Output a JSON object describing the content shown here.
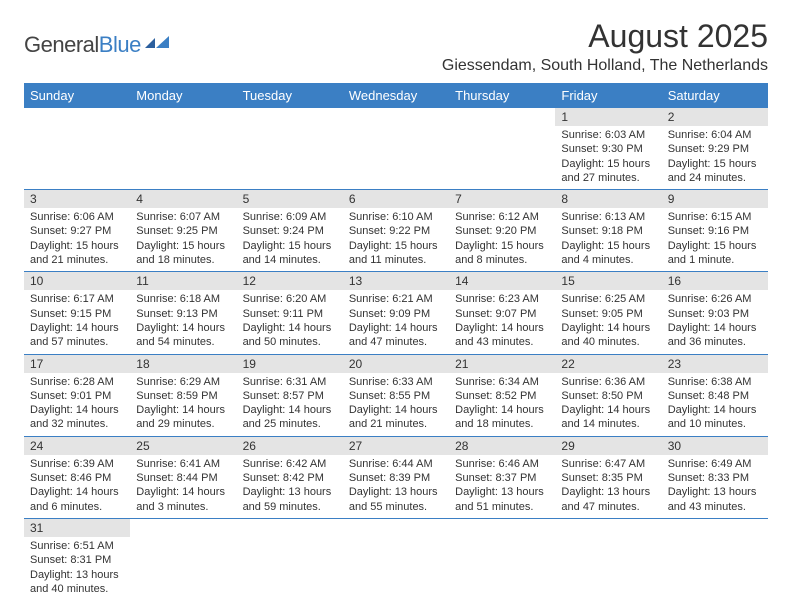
{
  "logo": {
    "text1": "General",
    "text2": "Blue"
  },
  "title": "August 2025",
  "location": "Giessendam, South Holland, The Netherlands",
  "dayHeaders": [
    "Sunday",
    "Monday",
    "Tuesday",
    "Wednesday",
    "Thursday",
    "Friday",
    "Saturday"
  ],
  "colors": {
    "headerBg": "#3b7fc4",
    "headerText": "#ffffff",
    "dayNumBg": "#e4e4e4",
    "borderColor": "#3b7fc4",
    "textColor": "#333333",
    "background": "#ffffff"
  },
  "typography": {
    "titleSize": 32,
    "locationSize": 16,
    "headerSize": 13,
    "cellSize": 11
  },
  "weeks": [
    [
      null,
      null,
      null,
      null,
      null,
      {
        "n": "1",
        "sr": "Sunrise: 6:03 AM",
        "ss": "Sunset: 9:30 PM",
        "dl": "Daylight: 15 hours and 27 minutes."
      },
      {
        "n": "2",
        "sr": "Sunrise: 6:04 AM",
        "ss": "Sunset: 9:29 PM",
        "dl": "Daylight: 15 hours and 24 minutes."
      }
    ],
    [
      {
        "n": "3",
        "sr": "Sunrise: 6:06 AM",
        "ss": "Sunset: 9:27 PM",
        "dl": "Daylight: 15 hours and 21 minutes."
      },
      {
        "n": "4",
        "sr": "Sunrise: 6:07 AM",
        "ss": "Sunset: 9:25 PM",
        "dl": "Daylight: 15 hours and 18 minutes."
      },
      {
        "n": "5",
        "sr": "Sunrise: 6:09 AM",
        "ss": "Sunset: 9:24 PM",
        "dl": "Daylight: 15 hours and 14 minutes."
      },
      {
        "n": "6",
        "sr": "Sunrise: 6:10 AM",
        "ss": "Sunset: 9:22 PM",
        "dl": "Daylight: 15 hours and 11 minutes."
      },
      {
        "n": "7",
        "sr": "Sunrise: 6:12 AM",
        "ss": "Sunset: 9:20 PM",
        "dl": "Daylight: 15 hours and 8 minutes."
      },
      {
        "n": "8",
        "sr": "Sunrise: 6:13 AM",
        "ss": "Sunset: 9:18 PM",
        "dl": "Daylight: 15 hours and 4 minutes."
      },
      {
        "n": "9",
        "sr": "Sunrise: 6:15 AM",
        "ss": "Sunset: 9:16 PM",
        "dl": "Daylight: 15 hours and 1 minute."
      }
    ],
    [
      {
        "n": "10",
        "sr": "Sunrise: 6:17 AM",
        "ss": "Sunset: 9:15 PM",
        "dl": "Daylight: 14 hours and 57 minutes."
      },
      {
        "n": "11",
        "sr": "Sunrise: 6:18 AM",
        "ss": "Sunset: 9:13 PM",
        "dl": "Daylight: 14 hours and 54 minutes."
      },
      {
        "n": "12",
        "sr": "Sunrise: 6:20 AM",
        "ss": "Sunset: 9:11 PM",
        "dl": "Daylight: 14 hours and 50 minutes."
      },
      {
        "n": "13",
        "sr": "Sunrise: 6:21 AM",
        "ss": "Sunset: 9:09 PM",
        "dl": "Daylight: 14 hours and 47 minutes."
      },
      {
        "n": "14",
        "sr": "Sunrise: 6:23 AM",
        "ss": "Sunset: 9:07 PM",
        "dl": "Daylight: 14 hours and 43 minutes."
      },
      {
        "n": "15",
        "sr": "Sunrise: 6:25 AM",
        "ss": "Sunset: 9:05 PM",
        "dl": "Daylight: 14 hours and 40 minutes."
      },
      {
        "n": "16",
        "sr": "Sunrise: 6:26 AM",
        "ss": "Sunset: 9:03 PM",
        "dl": "Daylight: 14 hours and 36 minutes."
      }
    ],
    [
      {
        "n": "17",
        "sr": "Sunrise: 6:28 AM",
        "ss": "Sunset: 9:01 PM",
        "dl": "Daylight: 14 hours and 32 minutes."
      },
      {
        "n": "18",
        "sr": "Sunrise: 6:29 AM",
        "ss": "Sunset: 8:59 PM",
        "dl": "Daylight: 14 hours and 29 minutes."
      },
      {
        "n": "19",
        "sr": "Sunrise: 6:31 AM",
        "ss": "Sunset: 8:57 PM",
        "dl": "Daylight: 14 hours and 25 minutes."
      },
      {
        "n": "20",
        "sr": "Sunrise: 6:33 AM",
        "ss": "Sunset: 8:55 PM",
        "dl": "Daylight: 14 hours and 21 minutes."
      },
      {
        "n": "21",
        "sr": "Sunrise: 6:34 AM",
        "ss": "Sunset: 8:52 PM",
        "dl": "Daylight: 14 hours and 18 minutes."
      },
      {
        "n": "22",
        "sr": "Sunrise: 6:36 AM",
        "ss": "Sunset: 8:50 PM",
        "dl": "Daylight: 14 hours and 14 minutes."
      },
      {
        "n": "23",
        "sr": "Sunrise: 6:38 AM",
        "ss": "Sunset: 8:48 PM",
        "dl": "Daylight: 14 hours and 10 minutes."
      }
    ],
    [
      {
        "n": "24",
        "sr": "Sunrise: 6:39 AM",
        "ss": "Sunset: 8:46 PM",
        "dl": "Daylight: 14 hours and 6 minutes."
      },
      {
        "n": "25",
        "sr": "Sunrise: 6:41 AM",
        "ss": "Sunset: 8:44 PM",
        "dl": "Daylight: 14 hours and 3 minutes."
      },
      {
        "n": "26",
        "sr": "Sunrise: 6:42 AM",
        "ss": "Sunset: 8:42 PM",
        "dl": "Daylight: 13 hours and 59 minutes."
      },
      {
        "n": "27",
        "sr": "Sunrise: 6:44 AM",
        "ss": "Sunset: 8:39 PM",
        "dl": "Daylight: 13 hours and 55 minutes."
      },
      {
        "n": "28",
        "sr": "Sunrise: 6:46 AM",
        "ss": "Sunset: 8:37 PM",
        "dl": "Daylight: 13 hours and 51 minutes."
      },
      {
        "n": "29",
        "sr": "Sunrise: 6:47 AM",
        "ss": "Sunset: 8:35 PM",
        "dl": "Daylight: 13 hours and 47 minutes."
      },
      {
        "n": "30",
        "sr": "Sunrise: 6:49 AM",
        "ss": "Sunset: 8:33 PM",
        "dl": "Daylight: 13 hours and 43 minutes."
      }
    ],
    [
      {
        "n": "31",
        "sr": "Sunrise: 6:51 AM",
        "ss": "Sunset: 8:31 PM",
        "dl": "Daylight: 13 hours and 40 minutes."
      },
      null,
      null,
      null,
      null,
      null,
      null
    ]
  ]
}
